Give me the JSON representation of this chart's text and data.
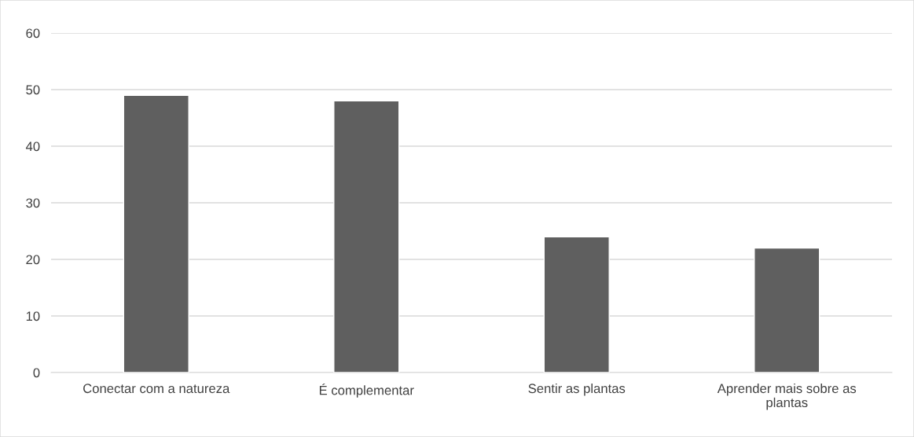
{
  "chart_data": {
    "type": "bar",
    "categories": [
      "Conectar com a natureza",
      "É complementar",
      "Sentir as plantas",
      "Aprender mais sobre as plantas"
    ],
    "values": [
      49,
      48,
      24,
      22
    ],
    "color": "#5f5f5f",
    "ylim": [
      0,
      60
    ],
    "yticks": [
      0,
      10,
      20,
      30,
      40,
      50,
      60
    ],
    "grid": "y",
    "legend": false
  }
}
